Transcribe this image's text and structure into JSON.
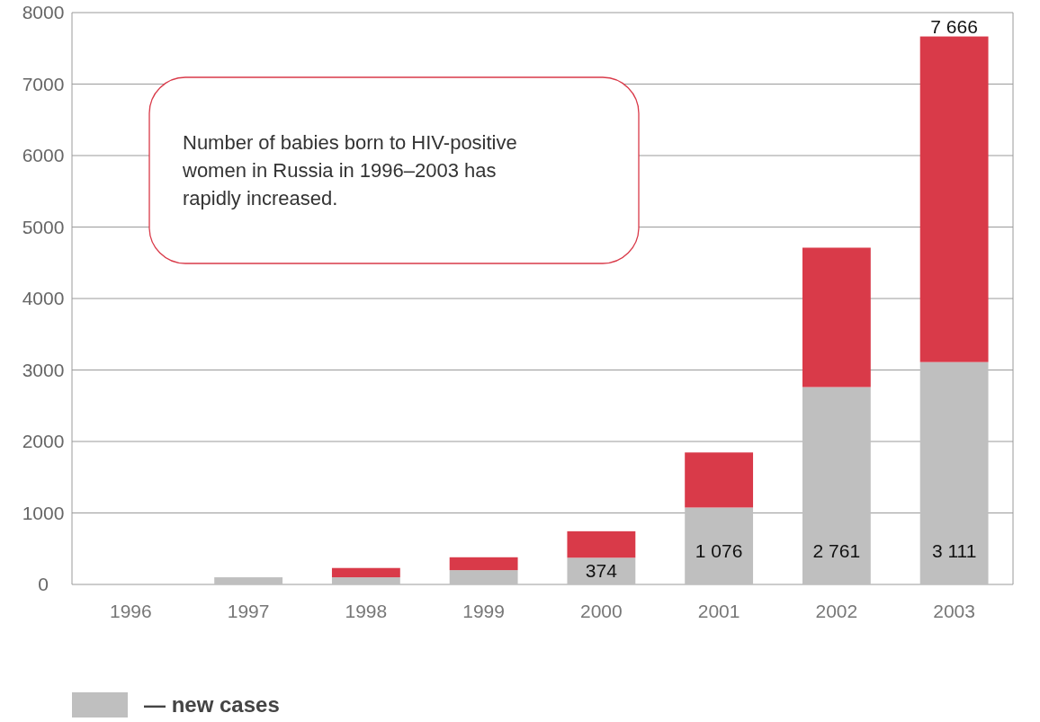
{
  "chart_data": {
    "type": "bar",
    "stacked": true,
    "categories": [
      "1996",
      "1997",
      "1998",
      "1999",
      "2000",
      "2001",
      "2002",
      "2003"
    ],
    "series": [
      {
        "name": "— new cases",
        "color": "#bfbfbf",
        "values": [
          0,
          100,
          100,
          200,
          374,
          1076,
          2761,
          3111
        ],
        "value_labels": [
          null,
          null,
          null,
          null,
          "374",
          "1 076",
          "2 761",
          "3 111"
        ]
      },
      {
        "color": "#d93a49",
        "values": [
          null,
          null,
          130,
          180,
          370,
          770,
          1950,
          4555
        ]
      }
    ],
    "totals": [
      null,
      null,
      null,
      null,
      null,
      null,
      null,
      "7 666"
    ],
    "ylim": [
      0,
      8000
    ],
    "yticks": [
      0,
      1000,
      2000,
      3000,
      4000,
      5000,
      6000,
      7000,
      8000
    ],
    "grid": "y",
    "legend": "bottom left",
    "annotations": [
      "Number of babies born to HIV-positive women in Russia in 1996–2003 has rapidly increased."
    ]
  }
}
